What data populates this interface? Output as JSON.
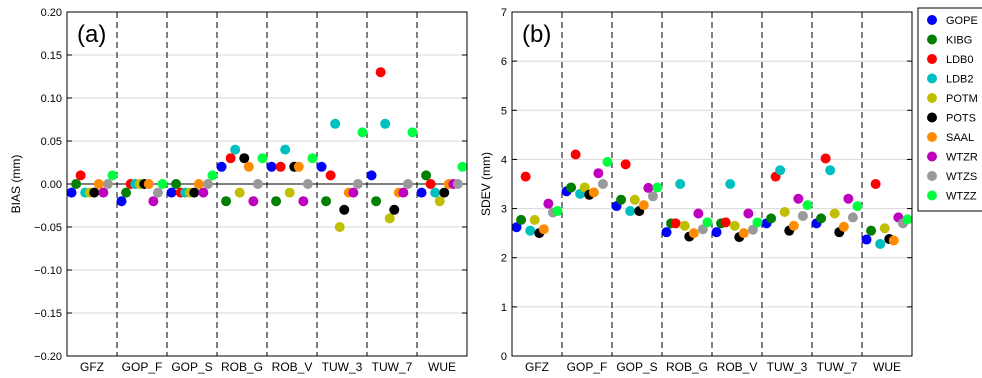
{
  "chart_data": [
    {
      "type": "scatter",
      "panel_label": "(a)",
      "title": "",
      "xlabel": "",
      "ylabel": "BIAS (mm)",
      "categories": [
        "GFZ",
        "GOP_F",
        "GOP_S",
        "ROB_G",
        "ROB_V",
        "TUW_3",
        "TUW_7",
        "WUE"
      ],
      "ylim": [
        -0.2,
        0.2
      ],
      "yticks": [
        -0.2,
        -0.15,
        -0.1,
        -0.05,
        0.0,
        0.05,
        0.1,
        0.15,
        0.2
      ],
      "ytick_labels": [
        "−0.20",
        "−0.15",
        "−0.10",
        "−0.05",
        "0.00",
        "0.05",
        "0.10",
        "0.15",
        "0.20"
      ],
      "grid": true,
      "category_separators": "dashed",
      "series": [
        {
          "name": "GOPE",
          "values": [
            -0.01,
            -0.02,
            -0.01,
            0.02,
            0.02,
            0.02,
            0.01,
            -0.01
          ]
        },
        {
          "name": "KIBG",
          "values": [
            0.0,
            -0.01,
            0.0,
            -0.02,
            -0.02,
            -0.02,
            -0.02,
            0.01
          ]
        },
        {
          "name": "LDB0",
          "values": [
            0.01,
            0.0,
            -0.01,
            0.03,
            0.02,
            0.01,
            0.13,
            0.0
          ]
        },
        {
          "name": "LDB2",
          "values": [
            -0.01,
            0.0,
            -0.01,
            0.04,
            0.04,
            0.07,
            0.07,
            -0.01
          ]
        },
        {
          "name": "POTM",
          "values": [
            -0.01,
            0.0,
            -0.01,
            -0.01,
            -0.01,
            -0.05,
            -0.04,
            -0.02
          ]
        },
        {
          "name": "POTS",
          "values": [
            -0.01,
            0.0,
            -0.01,
            0.03,
            0.02,
            -0.03,
            -0.03,
            -0.01
          ]
        },
        {
          "name": "SAAL",
          "values": [
            0.0,
            0.0,
            0.0,
            0.02,
            0.02,
            -0.01,
            -0.01,
            0.0
          ]
        },
        {
          "name": "WTZR",
          "values": [
            -0.01,
            -0.02,
            -0.01,
            -0.02,
            -0.02,
            -0.01,
            -0.01,
            0.0
          ]
        },
        {
          "name": "WTZS",
          "values": [
            0.0,
            -0.01,
            0.0,
            0.0,
            0.0,
            0.0,
            0.0,
            0.0
          ]
        },
        {
          "name": "WTZZ",
          "values": [
            0.01,
            0.0,
            0.01,
            0.03,
            0.03,
            0.06,
            0.06,
            0.02
          ]
        }
      ]
    },
    {
      "type": "scatter",
      "panel_label": "(b)",
      "title": "",
      "xlabel": "",
      "ylabel": "SDEV (mm)",
      "categories": [
        "GFZ",
        "GOP_F",
        "GOP_S",
        "ROB_G",
        "ROB_V",
        "TUW_3",
        "TUW_7",
        "WUE"
      ],
      "ylim": [
        0,
        7
      ],
      "yticks": [
        0,
        1,
        2,
        3,
        4,
        5,
        6,
        7
      ],
      "ytick_labels": [
        "0",
        "1",
        "2",
        "3",
        "4",
        "5",
        "6",
        "7"
      ],
      "grid": true,
      "category_separators": "dashed",
      "series": [
        {
          "name": "GOPE",
          "values": [
            2.62,
            3.35,
            3.05,
            2.52,
            2.52,
            2.7,
            2.7,
            2.37
          ]
        },
        {
          "name": "KIBG",
          "values": [
            2.77,
            3.43,
            3.18,
            2.7,
            2.7,
            2.8,
            2.8,
            2.55
          ]
        },
        {
          "name": "LDB0",
          "values": [
            3.65,
            4.1,
            3.9,
            2.7,
            2.72,
            3.65,
            4.02,
            3.5
          ]
        },
        {
          "name": "LDB2",
          "values": [
            2.55,
            3.3,
            2.95,
            3.5,
            3.5,
            3.78,
            3.78,
            2.28
          ]
        },
        {
          "name": "POTM",
          "values": [
            2.77,
            3.43,
            3.18,
            2.65,
            2.65,
            2.93,
            2.9,
            2.6
          ]
        },
        {
          "name": "POTS",
          "values": [
            2.5,
            3.28,
            2.95,
            2.43,
            2.42,
            2.55,
            2.52,
            2.38
          ]
        },
        {
          "name": "SAAL",
          "values": [
            2.58,
            3.33,
            3.07,
            2.5,
            2.5,
            2.65,
            2.63,
            2.35
          ]
        },
        {
          "name": "WTZR",
          "values": [
            3.1,
            3.72,
            3.42,
            2.9,
            2.9,
            3.2,
            3.2,
            2.82
          ]
        },
        {
          "name": "WTZS",
          "values": [
            2.92,
            3.5,
            3.25,
            2.58,
            2.57,
            2.85,
            2.82,
            2.7
          ]
        },
        {
          "name": "WTZZ",
          "values": [
            2.95,
            3.95,
            3.43,
            2.72,
            2.72,
            3.07,
            3.05,
            2.78
          ]
        }
      ]
    }
  ],
  "legend": {
    "placement": "right",
    "entries": [
      {
        "name": "GOPE",
        "color": "#0000ff"
      },
      {
        "name": "KIBG",
        "color": "#007f00"
      },
      {
        "name": "LDB0",
        "color": "#ff0000"
      },
      {
        "name": "LDB2",
        "color": "#00bfbf"
      },
      {
        "name": "POTM",
        "color": "#bfbf00"
      },
      {
        "name": "POTS",
        "color": "#000000"
      },
      {
        "name": "SAAL",
        "color": "#ff8c00"
      },
      {
        "name": "WTZR",
        "color": "#bf00bf"
      },
      {
        "name": "WTZS",
        "color": "#999999"
      },
      {
        "name": "WTZZ",
        "color": "#00ff40"
      }
    ]
  }
}
